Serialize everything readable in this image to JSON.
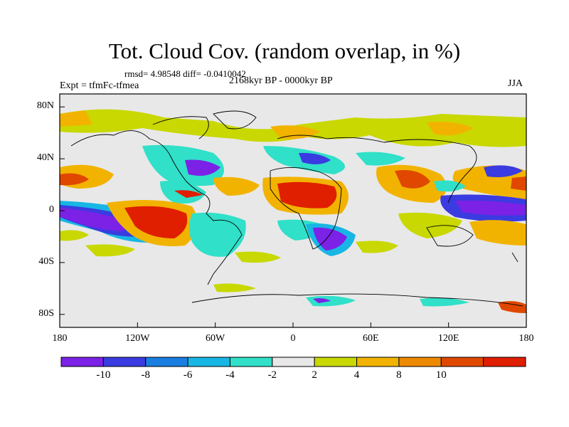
{
  "title": "Tot. Cloud Cov. (random overlap, in %)",
  "stats": "rmsd= 4.98548 diff= -0.0410042",
  "experiment": "Expt = tfmFc-tfmea",
  "period": "2168kyr BP - 0000kyr BP",
  "season": "JJA",
  "axes": {
    "x_ticks": [
      "180",
      "120W",
      "60W",
      "0",
      "60E",
      "120E",
      "180"
    ],
    "x_values": [
      -180,
      -120,
      -60,
      0,
      60,
      120,
      180
    ],
    "y_ticks": [
      "80N",
      "40N",
      "0",
      "40S",
      "80S"
    ],
    "y_values": [
      80,
      40,
      0,
      -40,
      -80
    ],
    "lon_range": [
      -180,
      180
    ],
    "lat_range": [
      -90,
      90
    ]
  },
  "colorbar": {
    "levels": [
      "-10",
      "-8",
      "-6",
      "-4",
      "-2",
      "2",
      "4",
      "8",
      "10"
    ],
    "colors": [
      "#7b22e6",
      "#3a3be0",
      "#1a7fe0",
      "#18b6e4",
      "#30e0c8",
      "#e8e8e8",
      "#c8d800",
      "#f2b300",
      "#ee8a00",
      "#e04800",
      "#e01e00"
    ]
  }
}
